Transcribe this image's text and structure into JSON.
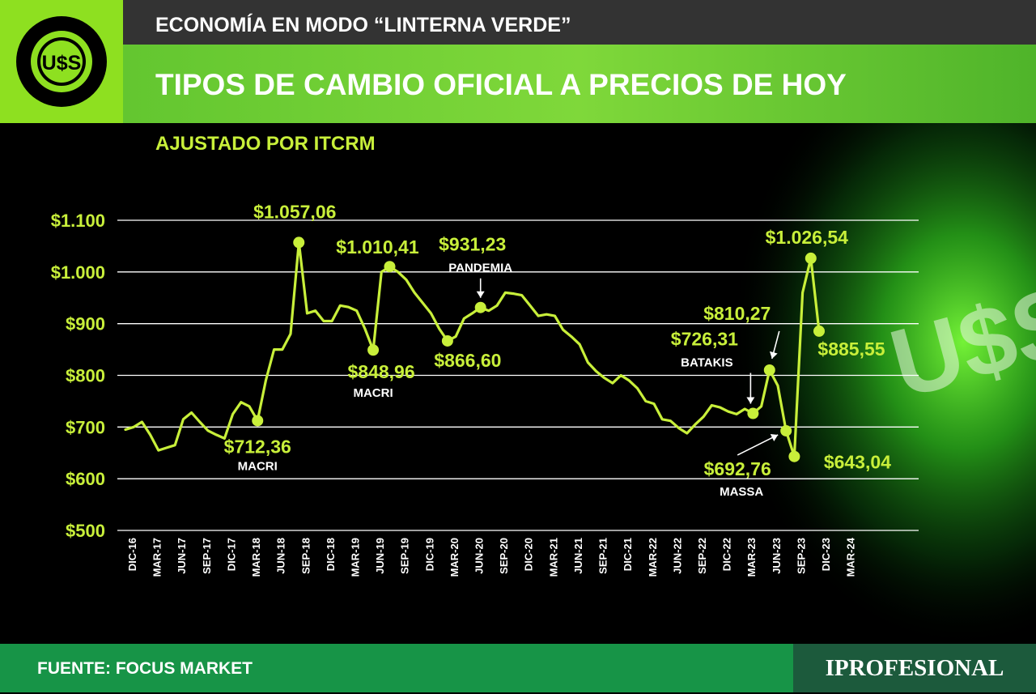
{
  "header": {
    "top_title": "ECONOMÍA EN MODO “LINTERNA VERDE”",
    "main_title": "TIPOS DE CAMBIO OFICIAL A PRECIOS DE HOY",
    "subtitle": "AJUSTADO POR ITCRM",
    "logo_text": "U$S"
  },
  "background": {
    "watermark_text": "U$S"
  },
  "footer": {
    "source": "FUENTE: FOCUS MARKET",
    "brand": "IPROFESIONAL"
  },
  "colors": {
    "line": "#c8ef3a",
    "accent_green": "#8ee020",
    "title_green": "#63c630",
    "footer_green": "#179447",
    "brand_green": "#1c5a3c"
  },
  "chart_data": {
    "type": "line",
    "title": "TIPOS DE CAMBIO OFICIAL A PRECIOS DE HOY",
    "subtitle": "AJUSTADO POR ITCRM",
    "ylim": [
      500,
      1100
    ],
    "yticks": [
      500,
      600,
      700,
      800,
      900,
      1000,
      1100
    ],
    "ytick_labels": [
      "$500",
      "$600",
      "$700",
      "$800",
      "$900",
      "$1.000",
      "$1.100"
    ],
    "grid": true,
    "xticks": [
      "DIC-16",
      "MAR-17",
      "JUN-17",
      "SEP-17",
      "DIC-17",
      "MAR-18",
      "JUN-18",
      "SEP-18",
      "DIC-18",
      "MAR-19",
      "JUN-19",
      "SEP-19",
      "DIC-19",
      "MAR-20",
      "JUN-20",
      "SEP-20",
      "DIC-20",
      "MAR-21",
      "JUN-21",
      "SEP-21",
      "DIC-21",
      "MAR-22",
      "JUN-22",
      "SEP-22",
      "DIC-22",
      "MAR-23",
      "JUN-23",
      "SEP-23",
      "DIC-23",
      "MAR-24"
    ],
    "series": [
      {
        "values": [
          695,
          700,
          710,
          685,
          655,
          660,
          665,
          715,
          728,
          710,
          693,
          685,
          678,
          725,
          748,
          740,
          712.36,
          790,
          850,
          850,
          880,
          1057.06,
          920,
          925,
          905,
          905,
          935,
          932,
          925,
          890,
          848.96,
          1000,
          1010.41,
          1000,
          985,
          960,
          940,
          920,
          890,
          866.6,
          875,
          910,
          920,
          931.23,
          925,
          935,
          960,
          958,
          955,
          935,
          915,
          918,
          915,
          888,
          875,
          860,
          825,
          808,
          795,
          785,
          800,
          790,
          775,
          750,
          745,
          715,
          712,
          698,
          688,
          705,
          720,
          742,
          738,
          730,
          725,
          735,
          726.31,
          740,
          810.27,
          780,
          692.76,
          643.04,
          960,
          1026.54,
          885.55
        ]
      }
    ],
    "annotations": [
      {
        "index": 16,
        "value_label": "$712,36",
        "note": "MACRI"
      },
      {
        "index": 21,
        "value_label": "$1.057,06",
        "note": ""
      },
      {
        "index": 30,
        "value_label": "$848,96",
        "note": "MACRI"
      },
      {
        "index": 32,
        "value_label": "$1.010,41",
        "note": ""
      },
      {
        "index": 39,
        "value_label": "$866,60",
        "note": ""
      },
      {
        "index": 43,
        "value_label": "$931,23",
        "note": "PANDEMIA"
      },
      {
        "index": 76,
        "value_label": "$726,31",
        "note": "BATAKIS"
      },
      {
        "index": 78,
        "value_label": "$810,27",
        "note": ""
      },
      {
        "index": 80,
        "value_label": "$692,76",
        "note": "MASSA"
      },
      {
        "index": 81,
        "value_label": "$643,04",
        "note": ""
      },
      {
        "index": 83,
        "value_label": "$1.026,54",
        "note": ""
      },
      {
        "index": 84,
        "value_label": "$885,55",
        "note": ""
      }
    ]
  }
}
